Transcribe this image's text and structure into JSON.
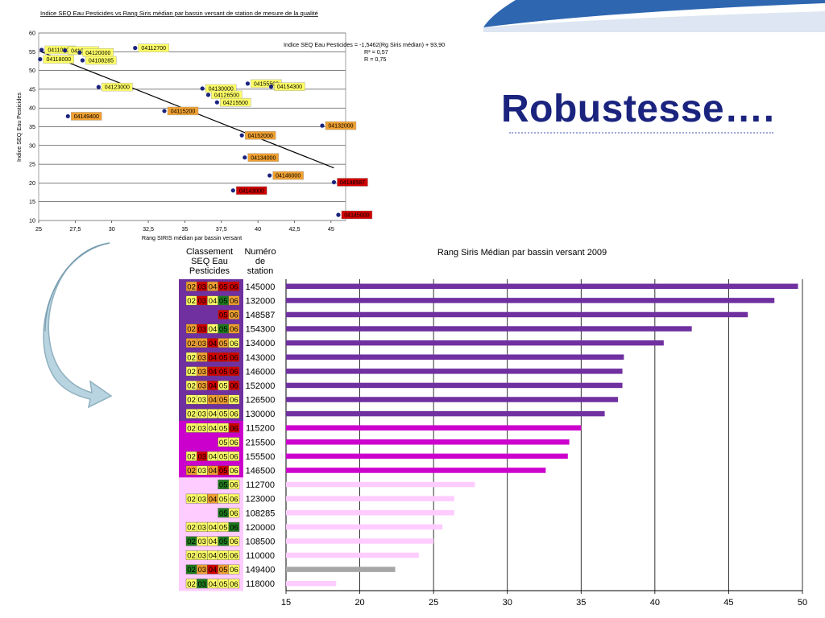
{
  "slide": {
    "title": "Robustesse…."
  },
  "colors": {
    "title": "#1a237e",
    "accent_band": "#2e66b0",
    "purple_bar": "#7030a0",
    "magenta_bar": "#cc00cc",
    "pink_bar": "#ffccff",
    "grey_bar": "#a6a6a6",
    "yellow": "#ffff66",
    "orange": "#f0a030",
    "red": "#d00000",
    "dark_red": "#b00020",
    "green": "#1e7b1e",
    "arrow": "#a8c8d8"
  },
  "chart_data": [
    {
      "type": "scatter",
      "title": "Indice SEQ Eau Pesticides vs Rang Siris médian par bassin versant de station de mesure de la qualité",
      "xlabel": "Rang SIRIS médian par bassin versant",
      "ylabel": "Indice SEQ Eau Pesticides",
      "xlim": [
        25,
        46
      ],
      "ylim": [
        10,
        60
      ],
      "x_ticks": [
        "25",
        "27,5",
        "30",
        "32,5",
        "35",
        "37,5",
        "40",
        "42,5",
        "45"
      ],
      "y_ticks": [
        "10",
        "15",
        "20",
        "25",
        "30",
        "35",
        "40",
        "45",
        "50",
        "55",
        "60"
      ],
      "grid": "horizontal",
      "equation": "Indice SEQ Eau Pesticides = -1,5462(Rg Siris médian) + 93,90",
      "r2_label": "R² = 0,57",
      "r_label": "R = 0,75",
      "trendline": {
        "slope": -1.5462,
        "intercept": 93.9
      },
      "points": [
        {
          "label": "04110000",
          "x": 25.2,
          "y": 55.5,
          "color": "yellow"
        },
        {
          "label": "04118000",
          "x": 25.1,
          "y": 53.0,
          "color": "yellow"
        },
        {
          "label": "04108500",
          "x": 26.8,
          "y": 55.3,
          "color": "yellow"
        },
        {
          "label": "04120000",
          "x": 27.8,
          "y": 54.8,
          "color": "yellow"
        },
        {
          "label": "04108285",
          "x": 28.0,
          "y": 52.7,
          "color": "yellow"
        },
        {
          "label": "04112700",
          "x": 31.6,
          "y": 56.0,
          "color": "yellow"
        },
        {
          "label": "04123000",
          "x": 29.1,
          "y": 45.6,
          "color": "yellow"
        },
        {
          "label": "04149400",
          "x": 27.0,
          "y": 37.8,
          "color": "orange"
        },
        {
          "label": "04115200",
          "x": 33.6,
          "y": 39.2,
          "color": "orange"
        },
        {
          "label": "04130000",
          "x": 36.2,
          "y": 45.2,
          "color": "yellow"
        },
        {
          "label": "04126500",
          "x": 36.6,
          "y": 43.5,
          "color": "yellow"
        },
        {
          "label": "04215500",
          "x": 37.2,
          "y": 41.5,
          "color": "yellow"
        },
        {
          "label": "04155500",
          "x": 39.3,
          "y": 46.5,
          "color": "yellow"
        },
        {
          "label": "04154300",
          "x": 40.9,
          "y": 45.7,
          "color": "yellow"
        },
        {
          "label": "04152000",
          "x": 38.9,
          "y": 32.7,
          "color": "orange"
        },
        {
          "label": "04132000",
          "x": 44.4,
          "y": 35.3,
          "color": "orange"
        },
        {
          "label": "04134000",
          "x": 39.1,
          "y": 26.8,
          "color": "orange"
        },
        {
          "label": "04146000",
          "x": 40.8,
          "y": 22.0,
          "color": "orange"
        },
        {
          "label": "04148587",
          "x": 45.2,
          "y": 20.2,
          "color": "red"
        },
        {
          "label": "04143000",
          "x": 38.3,
          "y": 18.0,
          "color": "red"
        },
        {
          "label": "04145000",
          "x": 45.5,
          "y": 11.5,
          "color": "red"
        }
      ]
    },
    {
      "type": "bar",
      "orientation": "horizontal",
      "title": "Rang Siris Médian par bassin versant 2009",
      "header_ranking": [
        "Classement",
        "SEQ Eau",
        "Pesticides"
      ],
      "header_station": [
        "Numéro",
        "de",
        "station"
      ],
      "xlim": [
        15,
        50
      ],
      "x_ticks": [
        "15",
        "20",
        "25",
        "30",
        "35",
        "40",
        "45",
        "50"
      ],
      "grid": "vertical",
      "rows": [
        {
          "station": "145000",
          "value": 49.7,
          "group": "purple",
          "badges": [
            [
              "02",
              "orange"
            ],
            [
              "03",
              "red"
            ],
            [
              "04",
              "orange"
            ],
            [
              "05",
              "red"
            ],
            [
              "06",
              "red"
            ]
          ]
        },
        {
          "station": "132000",
          "value": 48.1,
          "group": "purple",
          "badges": [
            [
              "02",
              "yellow"
            ],
            [
              "03",
              "red"
            ],
            [
              "04",
              "yellow"
            ],
            [
              "05",
              "green"
            ],
            [
              "06",
              "orange"
            ]
          ]
        },
        {
          "station": "148587",
          "value": 46.3,
          "group": "purple",
          "badges": [
            [
              "05",
              "red"
            ],
            [
              "06",
              "orange"
            ]
          ]
        },
        {
          "station": "154300",
          "value": 42.5,
          "group": "purple",
          "badges": [
            [
              "02",
              "orange"
            ],
            [
              "03",
              "red"
            ],
            [
              "04",
              "yellow"
            ],
            [
              "05",
              "green"
            ],
            [
              "06",
              "orange"
            ]
          ]
        },
        {
          "station": "134000",
          "value": 40.6,
          "group": "purple",
          "badges": [
            [
              "02",
              "orange"
            ],
            [
              "03",
              "orange"
            ],
            [
              "04",
              "red"
            ],
            [
              "05",
              "orange"
            ],
            [
              "06",
              "yellow"
            ]
          ]
        },
        {
          "station": "143000",
          "value": 37.9,
          "group": "purple",
          "badges": [
            [
              "02",
              "yellow"
            ],
            [
              "03",
              "orange"
            ],
            [
              "04",
              "red"
            ],
            [
              "05",
              "red"
            ],
            [
              "06",
              "red"
            ]
          ]
        },
        {
          "station": "146000",
          "value": 37.8,
          "group": "purple",
          "badges": [
            [
              "02",
              "yellow"
            ],
            [
              "03",
              "orange"
            ],
            [
              "04",
              "red"
            ],
            [
              "05",
              "red"
            ],
            [
              "06",
              "red"
            ]
          ]
        },
        {
          "station": "152000",
          "value": 37.8,
          "group": "purple",
          "badges": [
            [
              "02",
              "yellow"
            ],
            [
              "03",
              "orange"
            ],
            [
              "04",
              "red"
            ],
            [
              "05",
              "yellow"
            ],
            [
              "06",
              "red"
            ]
          ]
        },
        {
          "station": "126500",
          "value": 37.5,
          "group": "purple",
          "badges": [
            [
              "02",
              "yellow"
            ],
            [
              "03",
              "yellow"
            ],
            [
              "04",
              "orange"
            ],
            [
              "05",
              "orange"
            ],
            [
              "06",
              "yellow"
            ]
          ]
        },
        {
          "station": "130000",
          "value": 36.6,
          "group": "purple",
          "badges": [
            [
              "02",
              "yellow"
            ],
            [
              "03",
              "yellow"
            ],
            [
              "04",
              "yellow"
            ],
            [
              "05",
              "yellow"
            ],
            [
              "06",
              "yellow"
            ]
          ]
        },
        {
          "station": "115200",
          "value": 35.0,
          "group": "magenta",
          "badges": [
            [
              "02",
              "yellow"
            ],
            [
              "03",
              "yellow"
            ],
            [
              "04",
              "yellow"
            ],
            [
              "05",
              "yellow"
            ],
            [
              "06",
              "red"
            ]
          ]
        },
        {
          "station": "215500",
          "value": 34.2,
          "group": "magenta",
          "badges": [
            [
              "05",
              "yellow"
            ],
            [
              "06",
              "yellow"
            ]
          ]
        },
        {
          "station": "155500",
          "value": 34.1,
          "group": "magenta",
          "badges": [
            [
              "02",
              "yellow"
            ],
            [
              "03",
              "red"
            ],
            [
              "04",
              "yellow"
            ],
            [
              "05",
              "yellow"
            ],
            [
              "06",
              "yellow"
            ]
          ]
        },
        {
          "station": "146500",
          "value": 32.6,
          "group": "magenta",
          "badges": [
            [
              "02",
              "orange"
            ],
            [
              "03",
              "yellow"
            ],
            [
              "04",
              "orange"
            ],
            [
              "05",
              "red"
            ],
            [
              "06",
              "yellow"
            ]
          ]
        },
        {
          "station": "112700",
          "value": 27.8,
          "group": "pink",
          "badges": [
            [
              "05",
              "green"
            ],
            [
              "06",
              "yellow"
            ]
          ]
        },
        {
          "station": "123000",
          "value": 26.4,
          "group": "pink",
          "badges": [
            [
              "02",
              "yellow"
            ],
            [
              "03",
              "yellow"
            ],
            [
              "04",
              "orange"
            ],
            [
              "05",
              "yellow"
            ],
            [
              "06",
              "yellow"
            ]
          ]
        },
        {
          "station": "108285",
          "value": 26.4,
          "group": "pink",
          "badges": [
            [
              "05",
              "green"
            ],
            [
              "06",
              "yellow"
            ]
          ]
        },
        {
          "station": "120000",
          "value": 25.6,
          "group": "pink",
          "badges": [
            [
              "02",
              "yellow"
            ],
            [
              "03",
              "yellow"
            ],
            [
              "04",
              "yellow"
            ],
            [
              "05",
              "yellow"
            ],
            [
              "06",
              "green"
            ]
          ]
        },
        {
          "station": "108500",
          "value": 25.0,
          "group": "pink",
          "badges": [
            [
              "02",
              "green"
            ],
            [
              "03",
              "yellow"
            ],
            [
              "04",
              "yellow"
            ],
            [
              "05",
              "green"
            ],
            [
              "06",
              "yellow"
            ]
          ]
        },
        {
          "station": "110000",
          "value": 24.0,
          "group": "pink",
          "badges": [
            [
              "02",
              "yellow"
            ],
            [
              "03",
              "yellow"
            ],
            [
              "04",
              "yellow"
            ],
            [
              "05",
              "yellow"
            ],
            [
              "06",
              "yellow"
            ]
          ]
        },
        {
          "station": "149400",
          "value": 22.4,
          "group": "grey",
          "badges": [
            [
              "02",
              "green"
            ],
            [
              "03",
              "orange"
            ],
            [
              "04",
              "red"
            ],
            [
              "05",
              "orange"
            ],
            [
              "06",
              "yellow"
            ]
          ]
        },
        {
          "station": "118000",
          "value": 18.4,
          "group": "pink",
          "badges": [
            [
              "02",
              "yellow"
            ],
            [
              "03",
              "green"
            ],
            [
              "04",
              "yellow"
            ],
            [
              "05",
              "yellow"
            ],
            [
              "06",
              "yellow"
            ]
          ]
        }
      ]
    }
  ]
}
